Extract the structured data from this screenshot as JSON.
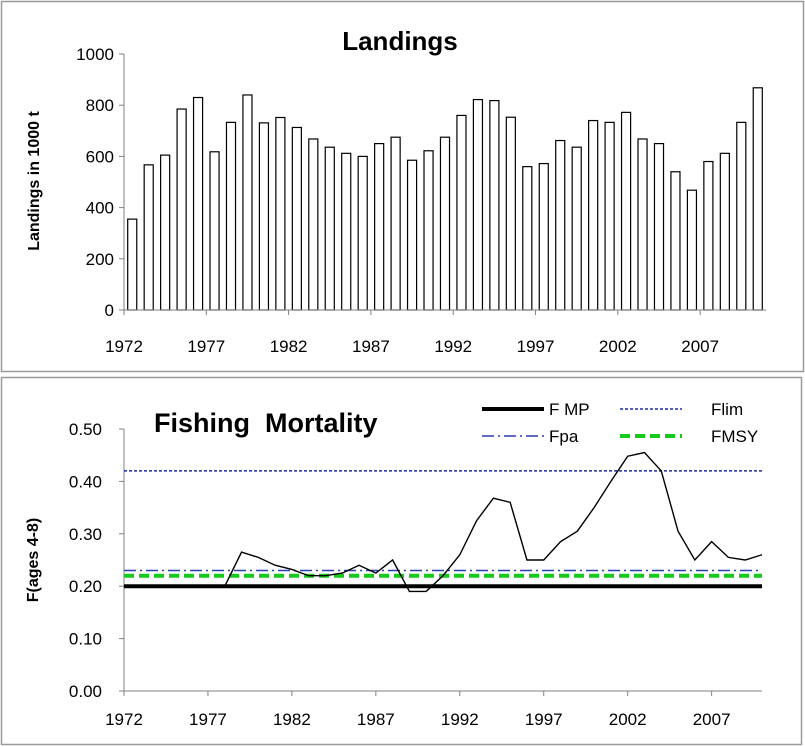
{
  "colors": {
    "axis": "#808080",
    "bar_fill": "#ffffff",
    "bar_stroke": "#000000",
    "f_line": "#000000",
    "flim": "#1f2f9f",
    "fpa": "#2a3fb0",
    "fmsy": "#17c81d",
    "fmp": "#000000",
    "frame": "#9a9a9a"
  },
  "chart_data": [
    {
      "type": "bar",
      "title": "Landings",
      "ylabel": "Landings in 1000 t",
      "xlabel": "",
      "ylim": [
        0,
        1000
      ],
      "yticks": [
        0,
        200,
        400,
        600,
        800,
        1000
      ],
      "ytick_labels": [
        "0",
        "200",
        "400",
        "600",
        "800",
        "1000"
      ],
      "xtick_years": [
        1972,
        1977,
        1982,
        1987,
        1992,
        1997,
        2002,
        2007
      ],
      "xtick_labels": [
        "1972",
        "1977",
        "1982",
        "1987",
        "1992",
        "1997",
        "2002",
        "2007"
      ],
      "years": [
        1972,
        1973,
        1974,
        1975,
        1976,
        1977,
        1978,
        1979,
        1980,
        1981,
        1982,
        1983,
        1984,
        1985,
        1986,
        1987,
        1988,
        1989,
        1990,
        1991,
        1992,
        1993,
        1994,
        1995,
        1996,
        1997,
        1998,
        1999,
        2000,
        2001,
        2002,
        2003,
        2004,
        2005,
        2006,
        2007,
        2008,
        2009,
        2010
      ],
      "values": [
        355,
        567,
        605,
        785,
        830,
        618,
        733,
        840,
        731,
        752,
        713,
        668,
        636,
        612,
        600,
        650,
        675,
        585,
        622,
        675,
        760,
        822,
        818,
        753,
        560,
        572,
        662,
        636,
        740,
        733,
        772,
        668,
        650,
        540,
        468,
        580,
        612,
        733,
        868
      ]
    },
    {
      "type": "line",
      "title": "Fishing  Mortality",
      "ylabel": "F(ages 4-8)",
      "xlabel": "",
      "ylim": [
        0,
        0.5
      ],
      "yticks": [
        0,
        0.1,
        0.2,
        0.3,
        0.4,
        0.5
      ],
      "ytick_labels": [
        "0.00",
        "0.10",
        "0.20",
        "0.30",
        "0.40",
        "0.50"
      ],
      "xtick_years": [
        1972,
        1977,
        1982,
        1987,
        1992,
        1997,
        2002,
        2007
      ],
      "xtick_labels": [
        "1972",
        "1977",
        "1982",
        "1987",
        "1992",
        "1997",
        "2002",
        "2007"
      ],
      "series": [
        {
          "name": "F",
          "years": [
            1978,
            1979,
            1980,
            1981,
            1982,
            1983,
            1984,
            1985,
            1986,
            1987,
            1988,
            1989,
            1990,
            1991,
            1992,
            1993,
            1994,
            1995,
            1996,
            1997,
            1998,
            1999,
            2000,
            2001,
            2002,
            2003,
            2004,
            2005,
            2006,
            2007,
            2008,
            2009,
            2010
          ],
          "values": [
            0.2,
            0.265,
            0.255,
            0.24,
            0.232,
            0.22,
            0.22,
            0.225,
            0.24,
            0.225,
            0.25,
            0.19,
            0.19,
            0.22,
            0.26,
            0.325,
            0.368,
            0.36,
            0.25,
            0.25,
            0.285,
            0.305,
            0.35,
            0.4,
            0.448,
            0.455,
            0.42,
            0.305,
            0.25,
            0.285,
            0.255,
            0.25,
            0.26
          ]
        }
      ],
      "reference_lines": [
        {
          "name": "F MP",
          "value": 0.2,
          "style": "solid-thick"
        },
        {
          "name": "Flim",
          "value": 0.42,
          "style": "dotted"
        },
        {
          "name": "Fpa",
          "value": 0.23,
          "style": "dash-dot"
        },
        {
          "name": "FMSY",
          "value": 0.22,
          "style": "dashed-green"
        }
      ],
      "legend": {
        "position": "top-right",
        "entries": [
          "F MP",
          "Flim",
          "Fpa",
          "FMSY"
        ]
      }
    }
  ]
}
